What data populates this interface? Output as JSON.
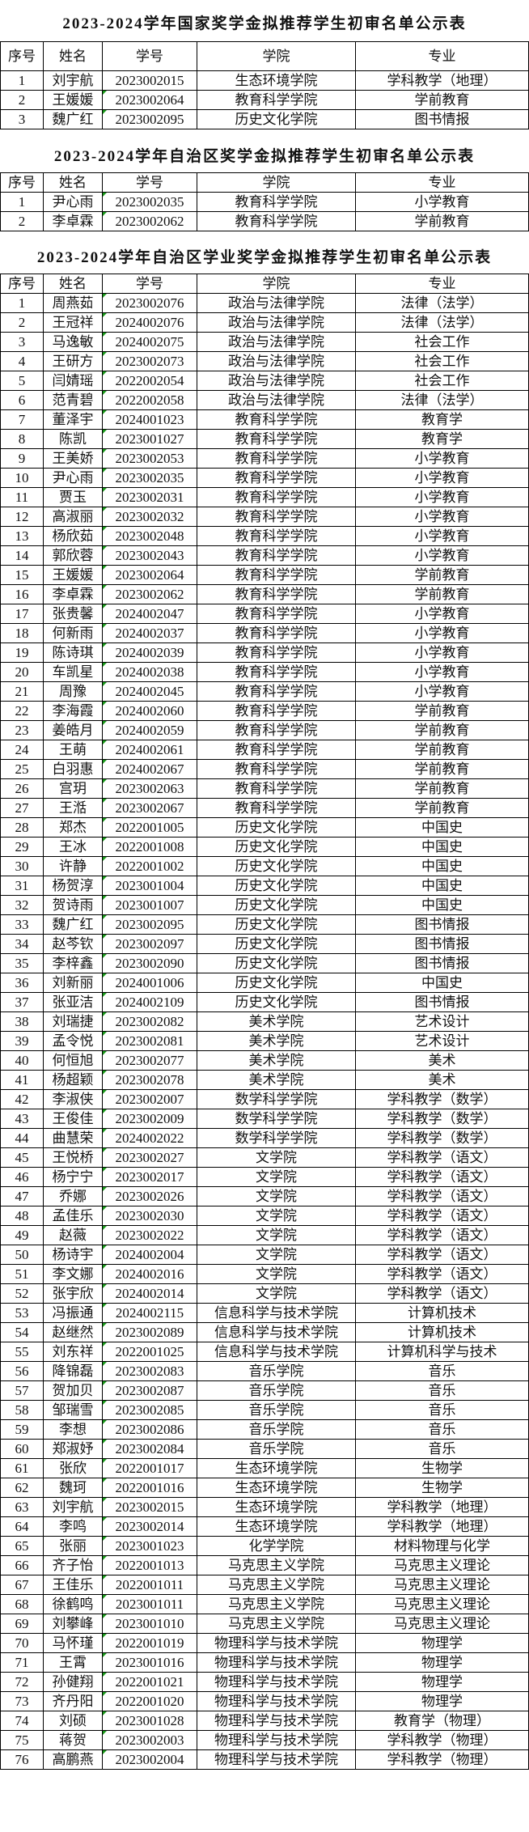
{
  "headers": [
    "序号",
    "姓名",
    "学号",
    "学院",
    "专业"
  ],
  "tables": [
    {
      "title": "2023-2024学年国家奖学金拟推荐学生初审名单公示表",
      "rows": [
        [
          "1",
          "刘宇航",
          "2023002015",
          "生态环境学院",
          "学科教学（地理）"
        ],
        [
          "2",
          "王媛媛",
          "2023002064",
          "教育科学学院",
          "学前教育"
        ],
        [
          "3",
          "魏广红",
          "2023002095",
          "历史文化学院",
          "图书情报"
        ]
      ]
    },
    {
      "title": "2023-2024学年自治区奖学金拟推荐学生初审名单公示表",
      "rows": [
        [
          "1",
          "尹心雨",
          "2023002035",
          "教育科学学院",
          "小学教育"
        ],
        [
          "2",
          "李卓霖",
          "2023002062",
          "教育科学学院",
          "学前教育"
        ]
      ]
    },
    {
      "title": "2023-2024学年自治区学业奖学金拟推荐学生初审名单公示表",
      "rows": [
        [
          "1",
          "周燕茹",
          "2023002076",
          "政治与法律学院",
          "法律（法学）"
        ],
        [
          "2",
          "王冠祥",
          "2024002076",
          "政治与法律学院",
          "法律（法学）"
        ],
        [
          "3",
          "马逸敏",
          "2024002075",
          "政治与法律学院",
          "社会工作"
        ],
        [
          "4",
          "王研方",
          "2023002073",
          "政治与法律学院",
          "社会工作"
        ],
        [
          "5",
          "闫婧瑶",
          "2022002054",
          "政治与法律学院",
          "社会工作"
        ],
        [
          "6",
          "范青碧",
          "2022002058",
          "政治与法律学院",
          "法律（法学）"
        ],
        [
          "7",
          "董泽宇",
          "2024001023",
          "教育科学学院",
          "教育学"
        ],
        [
          "8",
          "陈凯",
          "2023001027",
          "教育科学学院",
          "教育学"
        ],
        [
          "9",
          "王美娇",
          "2023002053",
          "教育科学学院",
          "小学教育"
        ],
        [
          "10",
          "尹心雨",
          "2023002035",
          "教育科学学院",
          "小学教育"
        ],
        [
          "11",
          "贾玉",
          "2023002031",
          "教育科学学院",
          "小学教育"
        ],
        [
          "12",
          "高淑丽",
          "2023002032",
          "教育科学学院",
          "小学教育"
        ],
        [
          "13",
          "杨欣茹",
          "2023002048",
          "教育科学学院",
          "小学教育"
        ],
        [
          "14",
          "郭欣蓉",
          "2023002043",
          "教育科学学院",
          "小学教育"
        ],
        [
          "15",
          "王媛媛",
          "2023002064",
          "教育科学学院",
          "学前教育"
        ],
        [
          "16",
          "李卓霖",
          "2023002062",
          "教育科学学院",
          "学前教育"
        ],
        [
          "17",
          "张贵馨",
          "2024002047",
          "教育科学学院",
          "小学教育"
        ],
        [
          "18",
          "何新雨",
          "2024002037",
          "教育科学学院",
          "小学教育"
        ],
        [
          "19",
          "陈诗琪",
          "2024002039",
          "教育科学学院",
          "小学教育"
        ],
        [
          "20",
          "车凯星",
          "2024002038",
          "教育科学学院",
          "小学教育"
        ],
        [
          "21",
          "周豫",
          "2024002045",
          "教育科学学院",
          "小学教育"
        ],
        [
          "22",
          "李海霞",
          "2024002060",
          "教育科学学院",
          "学前教育"
        ],
        [
          "23",
          "姜皓月",
          "2024002059",
          "教育科学学院",
          "学前教育"
        ],
        [
          "24",
          "王萌",
          "2024002061",
          "教育科学学院",
          "学前教育"
        ],
        [
          "25",
          "白羽惠",
          "2024002067",
          "教育科学学院",
          "学前教育"
        ],
        [
          "26",
          "宫玥",
          "2023002063",
          "教育科学学院",
          "学前教育"
        ],
        [
          "27",
          "王湉",
          "2023002067",
          "教育科学学院",
          "学前教育"
        ],
        [
          "28",
          "郑杰",
          "2022001005",
          "历史文化学院",
          "中国史"
        ],
        [
          "29",
          "王冰",
          "2022001008",
          "历史文化学院",
          "中国史"
        ],
        [
          "30",
          "许静",
          "2022001002",
          "历史文化学院",
          "中国史"
        ],
        [
          "31",
          "杨贺淳",
          "2023001004",
          "历史文化学院",
          "中国史"
        ],
        [
          "32",
          "贺诗雨",
          "2023001007",
          "历史文化学院",
          "中国史"
        ],
        [
          "33",
          "魏广红",
          "2023002095",
          "历史文化学院",
          "图书情报"
        ],
        [
          "34",
          "赵芩钦",
          "2023002097",
          "历史文化学院",
          "图书情报"
        ],
        [
          "35",
          "李梓鑫",
          "2023002090",
          "历史文化学院",
          "图书情报"
        ],
        [
          "36",
          "刘新丽",
          "2024001006",
          "历史文化学院",
          "中国史"
        ],
        [
          "37",
          "张亚洁",
          "2024002109",
          "历史文化学院",
          "图书情报"
        ],
        [
          "38",
          "刘瑞捷",
          "2023002082",
          "美术学院",
          "艺术设计"
        ],
        [
          "39",
          "孟令悦",
          "2023002081",
          "美术学院",
          "艺术设计"
        ],
        [
          "40",
          "何恒旭",
          "2023002077",
          "美术学院",
          "美术"
        ],
        [
          "41",
          "杨超颖",
          "2023002078",
          "美术学院",
          "美术"
        ],
        [
          "42",
          "李淑侠",
          "2023002007",
          "数学科学学院",
          "学科教学（数学）"
        ],
        [
          "43",
          "王俊佳",
          "2023002009",
          "数学科学学院",
          "学科教学（数学）"
        ],
        [
          "44",
          "曲慧荣",
          "2024002022",
          "数学科学学院",
          "学科教学（数学）"
        ],
        [
          "45",
          "王悦桥",
          "2023002027",
          "文学院",
          "学科教学（语文）"
        ],
        [
          "46",
          "杨宁宁",
          "2023002017",
          "文学院",
          "学科教学（语文）"
        ],
        [
          "47",
          "乔娜",
          "2023002026",
          "文学院",
          "学科教学（语文）"
        ],
        [
          "48",
          "孟佳乐",
          "2023002030",
          "文学院",
          "学科教学（语文）"
        ],
        [
          "49",
          "赵薇",
          "2023002022",
          "文学院",
          "学科教学（语文）"
        ],
        [
          "50",
          "杨诗宇",
          "2024002004",
          "文学院",
          "学科教学（语文）"
        ],
        [
          "51",
          "李文娜",
          "2024002016",
          "文学院",
          "学科教学（语文）"
        ],
        [
          "52",
          "张宇欣",
          "2024002014",
          "文学院",
          "学科教学（语文）"
        ],
        [
          "53",
          "冯振通",
          "2024002115",
          "信息科学与技术学院",
          "计算机技术"
        ],
        [
          "54",
          "赵继然",
          "2023002089",
          "信息科学与技术学院",
          "计算机技术"
        ],
        [
          "55",
          "刘东祥",
          "2022001025",
          "信息科学与技术学院",
          "计算机科学与技术"
        ],
        [
          "56",
          "降锦磊",
          "2023002083",
          "音乐学院",
          "音乐"
        ],
        [
          "57",
          "贺加贝",
          "2023002087",
          "音乐学院",
          "音乐"
        ],
        [
          "58",
          "邹瑞雪",
          "2023002085",
          "音乐学院",
          "音乐"
        ],
        [
          "59",
          "李想",
          "2023002086",
          "音乐学院",
          "音乐"
        ],
        [
          "60",
          "郑淑妤",
          "2023002084",
          "音乐学院",
          "音乐"
        ],
        [
          "61",
          "张欣",
          "2022001017",
          "生态环境学院",
          "生物学"
        ],
        [
          "62",
          "魏珂",
          "2022001016",
          "生态环境学院",
          "生物学"
        ],
        [
          "63",
          "刘宇航",
          "2023002015",
          "生态环境学院",
          "学科教学（地理）"
        ],
        [
          "64",
          "李鸣",
          "2023002014",
          "生态环境学院",
          "学科教学（地理）"
        ],
        [
          "65",
          "张丽",
          "2023001023",
          "化学学院",
          "材料物理与化学"
        ],
        [
          "66",
          "齐子怡",
          "2022001013",
          "马克思主义学院",
          "马克思主义理论"
        ],
        [
          "67",
          "王佳乐",
          "2022001011",
          "马克思主义学院",
          "马克思主义理论"
        ],
        [
          "68",
          "徐鹤鸣",
          "2023001011",
          "马克思主义学院",
          "马克思主义理论"
        ],
        [
          "69",
          "刘攀峰",
          "2023001010",
          "马克思主义学院",
          "马克思主义理论"
        ],
        [
          "70",
          "马怀瑾",
          "2022001019",
          "物理科学与技术学院",
          "物理学"
        ],
        [
          "71",
          "王霄",
          "2023001016",
          "物理科学与技术学院",
          "物理学"
        ],
        [
          "72",
          "孙健翔",
          "2022001021",
          "物理科学与技术学院",
          "物理学"
        ],
        [
          "73",
          "齐丹阳",
          "2022001020",
          "物理科学与技术学院",
          "物理学"
        ],
        [
          "74",
          "刘硕",
          "2023001028",
          "物理科学与技术学院",
          "教育学（物理）"
        ],
        [
          "75",
          "蒋贺",
          "2023002003",
          "物理科学与技术学院",
          "学科教学（物理）"
        ],
        [
          "76",
          "高鹏燕",
          "2023002004",
          "物理科学与技术学院",
          "学科教学（物理）"
        ]
      ]
    }
  ]
}
